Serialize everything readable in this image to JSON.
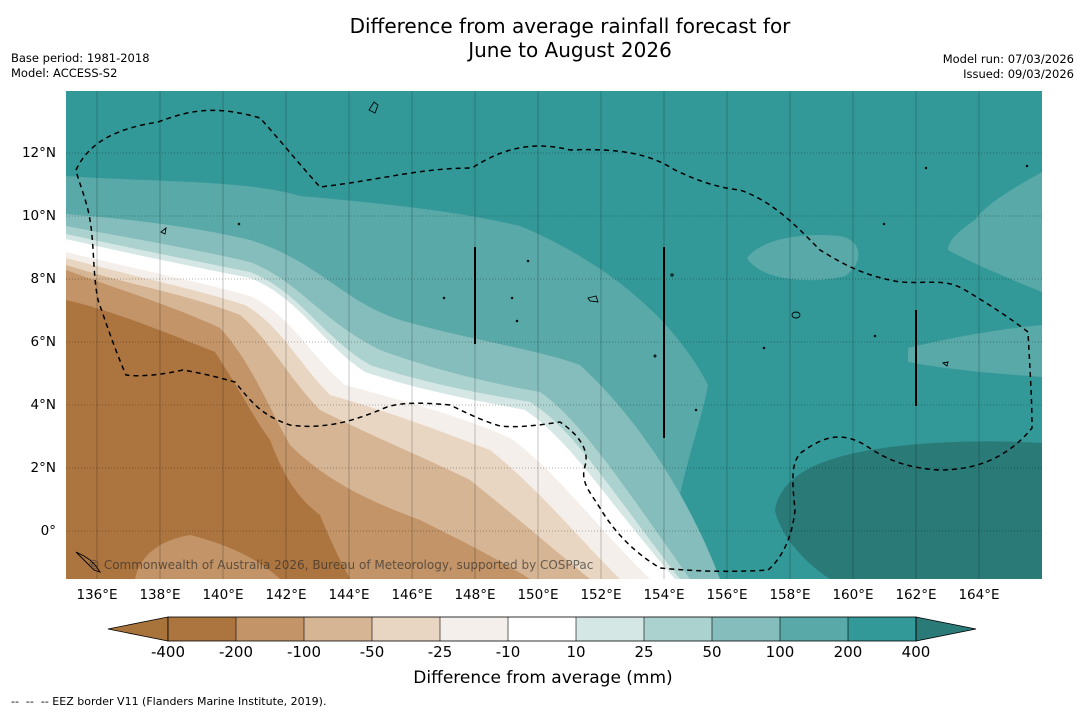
{
  "title": {
    "line1": "Difference from average rainfall forecast for",
    "line2": "June to August 2026"
  },
  "meta": {
    "base_period": "Base period: 1981-2018",
    "model": "Model: ACCESS-S2",
    "model_run": "Model run: 07/03/2026",
    "issued": "Issued: 09/03/2026"
  },
  "map": {
    "latitude_labels": [
      "12°N",
      "10°N",
      "8°N",
      "6°N",
      "4°N",
      "2°N",
      "0°"
    ],
    "longitude_labels": [
      "136°E",
      "138°E",
      "140°E",
      "142°E",
      "144°E",
      "146°E",
      "148°E",
      "150°E",
      "152°E",
      "154°E",
      "156°E",
      "158°E",
      "160°E",
      "162°E",
      "164°E"
    ],
    "copyright": "© Commonwealth of Australia 2026, Bureau of Meteorology, supported by COSPPac"
  },
  "colorbar": {
    "title": "Difference from average (mm)",
    "ticks": [
      "-400",
      "-200",
      "-100",
      "-50",
      "-25",
      "-10",
      "10",
      "25",
      "50",
      "100",
      "200",
      "400"
    ],
    "colors": {
      "below_min": "#a9733c",
      "bins": [
        "#ac7540",
        "#c29468",
        "#d5b594",
        "#e8d6c2",
        "#f4efea",
        "#ffffff",
        "#d4e7e5",
        "#acd2d0",
        "#85bdbc",
        "#58a9a8",
        "#339998"
      ],
      "above_max": "#2a7a78"
    }
  },
  "footer": "--  --  -- EEZ border V11 (Flanders Marine Institute, 2019)."
}
